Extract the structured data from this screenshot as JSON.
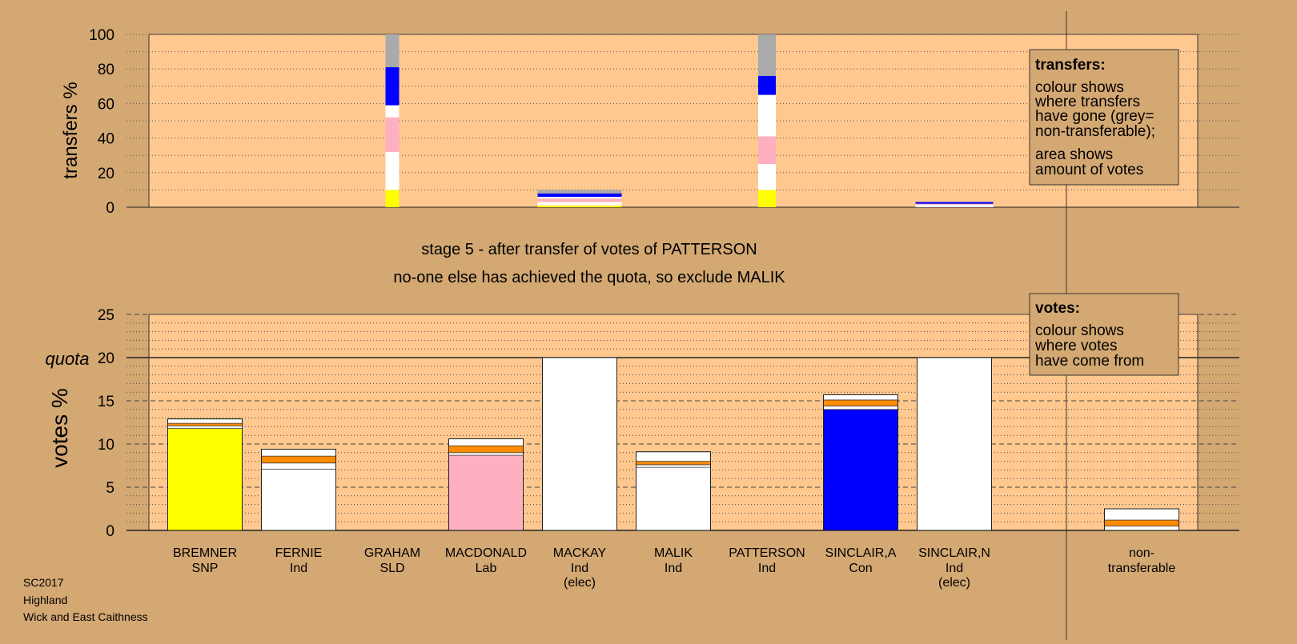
{
  "colors": {
    "background": "#d4a873",
    "plot_bg": "#ffc88f",
    "yellow": "#ffff00",
    "blue": "#0000ff",
    "pink": "#ffb0c0",
    "white": "#ffffff",
    "orange": "#ff8c00",
    "grey": "#aaaaaa"
  },
  "stage_text": {
    "line1": "stage 5 - after transfer of votes of PATTERSON",
    "line2": "no-one else has achieved the quota, so exclude MALIK"
  },
  "footer": {
    "election": "SC2017",
    "council": "Highland",
    "ward": "Wick and East Caithness"
  },
  "legend_transfers": {
    "title": "transfers:",
    "lines1": [
      "colour shows",
      "where transfers",
      "have gone (grey=",
      "non-transferable);"
    ],
    "lines2": [
      "area shows",
      "amount of votes"
    ]
  },
  "legend_votes": {
    "title": "votes:",
    "lines": [
      "colour shows",
      "where votes",
      "have come from"
    ]
  },
  "quota_label": "quota",
  "chart_data": [
    {
      "type": "bar",
      "ylabel": "transfers %",
      "ylim": [
        0,
        100
      ],
      "yticks": [
        0,
        20,
        40,
        60,
        80,
        100
      ],
      "transfers": [
        {
          "candidate": "GRAHAM",
          "segments": [
            {
              "color": "yellow",
              "from": 0,
              "to": 10
            },
            {
              "color": "white",
              "from": 10,
              "to": 32
            },
            {
              "color": "pink",
              "from": 32,
              "to": 52
            },
            {
              "color": "white",
              "from": 52,
              "to": 59
            },
            {
              "color": "blue",
              "from": 59,
              "to": 81
            },
            {
              "color": "grey",
              "from": 81,
              "to": 100
            }
          ]
        },
        {
          "candidate": "MACKAY",
          "segments": [
            {
              "color": "yellow",
              "from": 0,
              "to": 1
            },
            {
              "color": "white",
              "from": 1,
              "to": 3
            },
            {
              "color": "pink",
              "from": 3,
              "to": 5
            },
            {
              "color": "white",
              "from": 5,
              "to": 6
            },
            {
              "color": "blue",
              "from": 6,
              "to": 8
            },
            {
              "color": "grey",
              "from": 8,
              "to": 10
            }
          ]
        },
        {
          "candidate": "PATTERSON",
          "segments": [
            {
              "color": "yellow",
              "from": 0,
              "to": 10
            },
            {
              "color": "white",
              "from": 10,
              "to": 25
            },
            {
              "color": "pink",
              "from": 25,
              "to": 41
            },
            {
              "color": "white",
              "from": 41,
              "to": 65
            },
            {
              "color": "blue",
              "from": 65,
              "to": 76
            },
            {
              "color": "grey",
              "from": 76,
              "to": 100
            }
          ]
        },
        {
          "candidate": "SINCLAIR,N",
          "segments": [
            {
              "color": "white",
              "from": 0,
              "to": 1.5
            },
            {
              "color": "pink",
              "from": 1.5,
              "to": 2
            },
            {
              "color": "blue",
              "from": 2,
              "to": 3
            }
          ]
        }
      ]
    },
    {
      "type": "bar",
      "ylabel": "votes %",
      "ylim": [
        0,
        25
      ],
      "yticks": [
        0,
        5,
        10,
        15,
        20,
        25
      ],
      "quota": 20,
      "categories": [
        "BREMNER",
        "FERNIE",
        "GRAHAM",
        "MACDONALD",
        "MACKAY",
        "MALIK",
        "PATTERSON",
        "SINCLAIR,A",
        "SINCLAIR,N",
        "non-"
      ],
      "category_sub1": [
        "SNP",
        "Ind",
        "SLD",
        "Lab",
        "Ind",
        "Ind",
        "Ind",
        "Con",
        "Ind",
        "transferable"
      ],
      "category_sub2": [
        "",
        "",
        "",
        "",
        "(elec)",
        "",
        "",
        "",
        "(elec)",
        ""
      ],
      "bars": [
        {
          "candidate": "BREMNER",
          "total": 12.9,
          "segments": [
            {
              "color": "yellow",
              "from": 0,
              "to": 11.8
            },
            {
              "color": "white",
              "from": 11.8,
              "to": 12.1
            },
            {
              "color": "orange",
              "from": 12.1,
              "to": 12.4
            },
            {
              "color": "white",
              "from": 12.4,
              "to": 12.9
            }
          ]
        },
        {
          "candidate": "FERNIE",
          "total": 9.4,
          "segments": [
            {
              "color": "white",
              "from": 0,
              "to": 7.1
            },
            {
              "color": "white",
              "from": 7.1,
              "to": 7.8
            },
            {
              "color": "orange",
              "from": 7.8,
              "to": 8.6
            },
            {
              "color": "white",
              "from": 8.6,
              "to": 9.4
            }
          ]
        },
        {
          "candidate": "GRAHAM",
          "total": 0,
          "segments": []
        },
        {
          "candidate": "MACDONALD",
          "total": 10.6,
          "segments": [
            {
              "color": "pink",
              "from": 0,
              "to": 8.7
            },
            {
              "color": "white",
              "from": 8.7,
              "to": 9.0
            },
            {
              "color": "orange",
              "from": 9.0,
              "to": 9.8
            },
            {
              "color": "white",
              "from": 9.8,
              "to": 10.6
            }
          ]
        },
        {
          "candidate": "MACKAY",
          "total": 20,
          "segments": [
            {
              "color": "white",
              "from": 0,
              "to": 20
            }
          ]
        },
        {
          "candidate": "MALIK",
          "total": 9.1,
          "segments": [
            {
              "color": "white",
              "from": 0,
              "to": 7.3
            },
            {
              "color": "white",
              "from": 7.3,
              "to": 7.6
            },
            {
              "color": "orange",
              "from": 7.6,
              "to": 8.0
            },
            {
              "color": "white",
              "from": 8.0,
              "to": 9.1
            }
          ]
        },
        {
          "candidate": "PATTERSON",
          "total": 0,
          "segments": []
        },
        {
          "candidate": "SINCLAIR,A",
          "total": 15.7,
          "segments": [
            {
              "color": "blue",
              "from": 0,
              "to": 14.0
            },
            {
              "color": "white",
              "from": 14.0,
              "to": 14.4
            },
            {
              "color": "orange",
              "from": 14.4,
              "to": 15.1
            },
            {
              "color": "white",
              "from": 15.1,
              "to": 15.7
            }
          ]
        },
        {
          "candidate": "SINCLAIR,N",
          "total": 20,
          "segments": [
            {
              "color": "white",
              "from": 0,
              "to": 20
            }
          ]
        },
        {
          "candidate": "non-",
          "total": 2.5,
          "segments": [
            {
              "color": "white",
              "from": 0,
              "to": 0.5
            },
            {
              "color": "orange",
              "from": 0.5,
              "to": 1.2
            },
            {
              "color": "white",
              "from": 1.2,
              "to": 2.5
            }
          ]
        }
      ]
    }
  ]
}
